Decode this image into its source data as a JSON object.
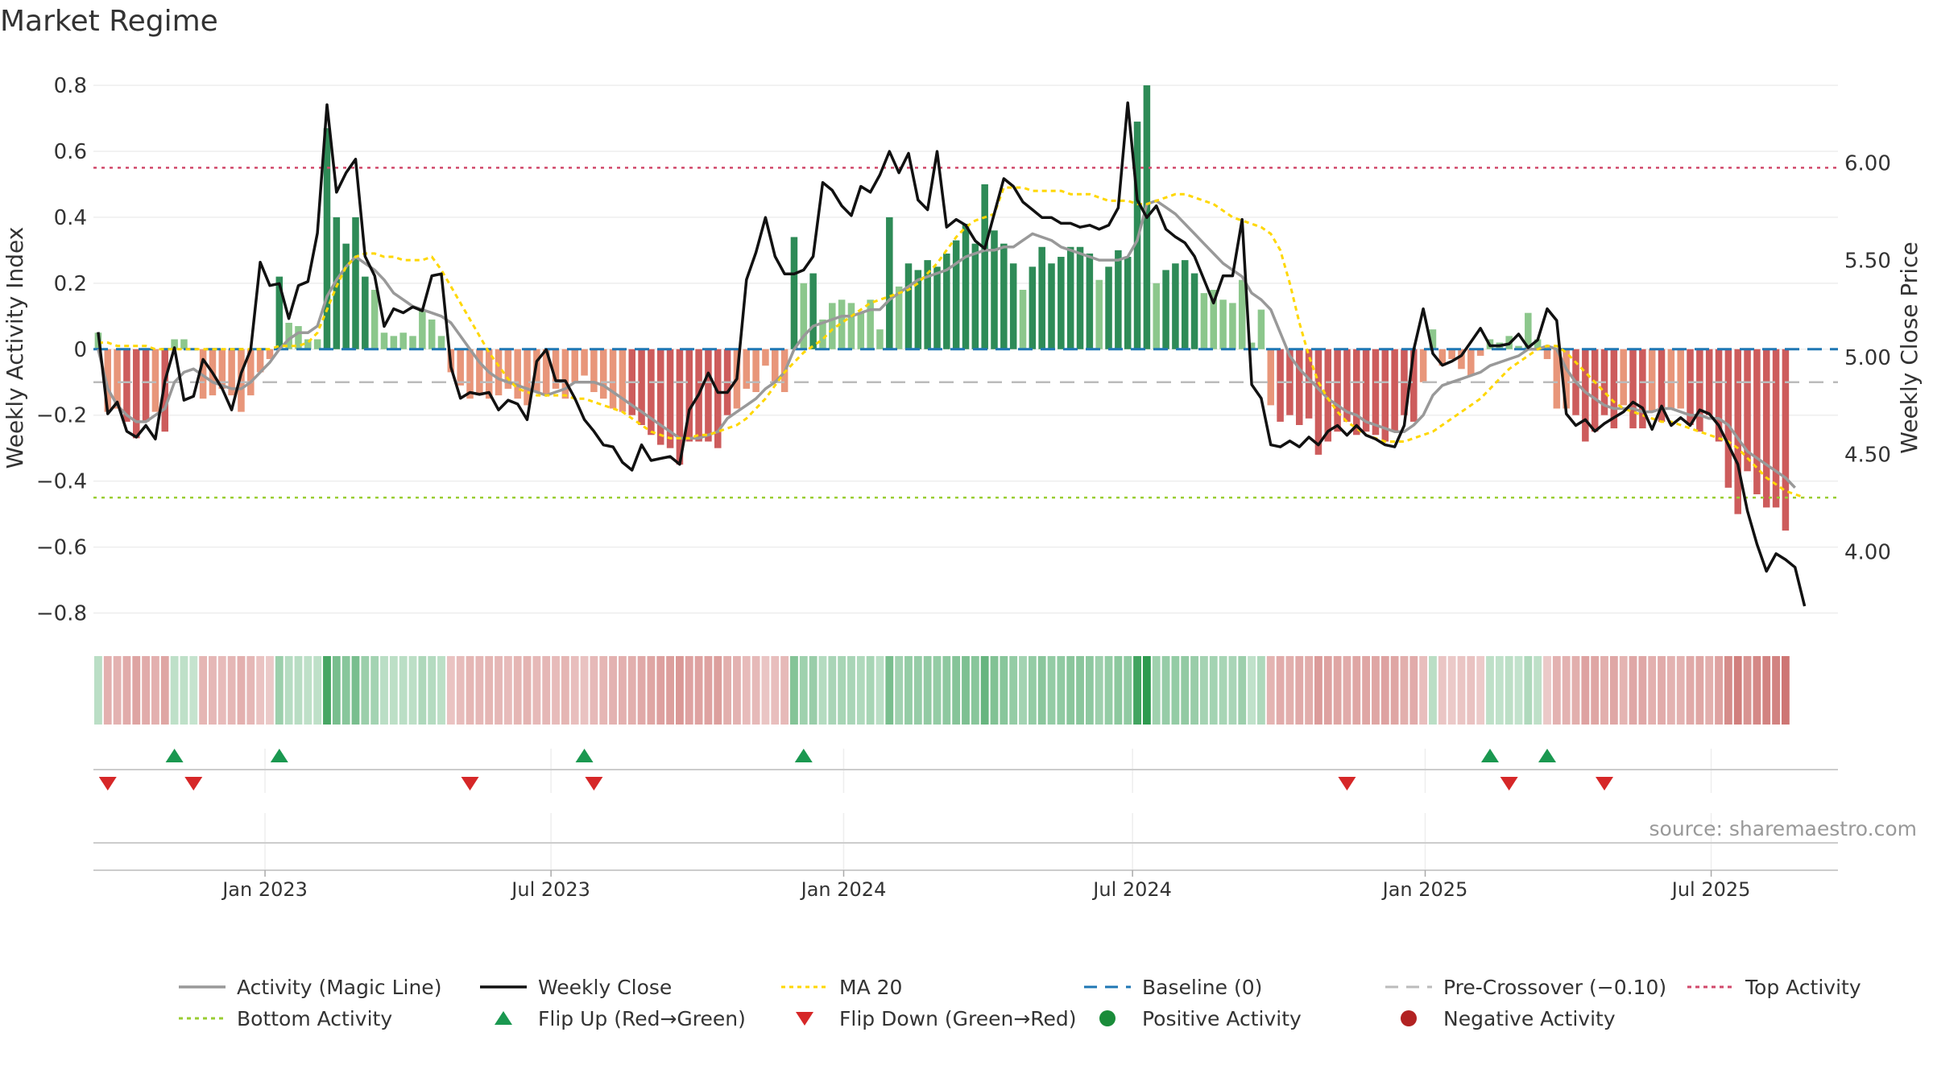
{
  "chart_data": {
    "type": "bar",
    "title": "Market Regime",
    "ylabel_left": "Weekly Activity Index",
    "ylabel_right": "Weekly Close Price",
    "source": "source: sharemaestro.com",
    "left_axis": {
      "ylim": [
        -0.85,
        0.8
      ],
      "ticks": [
        0.8,
        0.6,
        0.4,
        0.2,
        0,
        -0.2,
        -0.4,
        -0.6,
        -0.8
      ],
      "tick_labels": [
        "0.8",
        "0.6",
        "0.4",
        "0.2",
        "0",
        "−0.2",
        "−0.4",
        "−0.6",
        "−0.8"
      ]
    },
    "right_axis": {
      "ylim": [
        3.6,
        6.4
      ],
      "ticks": [
        6.0,
        5.5,
        5.0,
        4.5,
        4.0
      ],
      "tick_labels": [
        "6.00",
        "5.50",
        "5.00",
        "4.50",
        "4.00"
      ]
    },
    "x_axis": {
      "week_count": 183,
      "ticks": [
        {
          "label": "Jan 2023",
          "week": 17.5
        },
        {
          "label": "Jul 2023",
          "week": 47.5
        },
        {
          "label": "Jan 2024",
          "week": 78.2
        },
        {
          "label": "Jul 2024",
          "week": 108.5
        },
        {
          "label": "Jan 2025",
          "week": 139.2
        },
        {
          "label": "Jul 2025",
          "week": 169.2
        }
      ]
    },
    "reference_lines": {
      "top_activity": 0.55,
      "bottom_activity": -0.45,
      "pre_crossover": -0.1,
      "baseline": 0
    },
    "colors": {
      "pos_strong": "#2e8b57",
      "pos_light": "#8cc78c",
      "neg_strong": "#cd5c5c",
      "neg_light": "#e8967a",
      "close": "#111111",
      "magic": "#999999",
      "ma20": "#ffd700",
      "baseline": "#1f77b4",
      "pre": "#bbbbbb",
      "top": "#d1496b",
      "bottom": "#9acd32",
      "flip_up": "#1a9850",
      "flip_down": "#d62728",
      "pos_dot": "#1a8c3a",
      "neg_dot": "#b22222"
    },
    "activity": [
      0.05,
      -0.19,
      -0.18,
      -0.22,
      -0.27,
      -0.22,
      -0.19,
      -0.25,
      0.03,
      0.03,
      0.0,
      -0.15,
      -0.14,
      -0.12,
      -0.14,
      -0.19,
      -0.14,
      -0.07,
      -0.03,
      0.22,
      0.08,
      0.07,
      0.03,
      0.03,
      0.67,
      0.4,
      0.32,
      0.4,
      0.22,
      0.18,
      0.05,
      0.04,
      0.05,
      0.04,
      0.12,
      0.09,
      0.04,
      -0.07,
      -0.11,
      -0.15,
      -0.14,
      -0.15,
      -0.14,
      -0.12,
      -0.15,
      -0.17,
      -0.13,
      -0.14,
      -0.12,
      -0.15,
      -0.1,
      -0.08,
      -0.13,
      -0.15,
      -0.18,
      -0.19,
      -0.2,
      -0.23,
      -0.26,
      -0.29,
      -0.3,
      -0.35,
      -0.28,
      -0.28,
      -0.28,
      -0.3,
      -0.2,
      -0.18,
      -0.12,
      -0.13,
      -0.05,
      -0.1,
      -0.13,
      0.34,
      0.2,
      0.23,
      0.09,
      0.14,
      0.15,
      0.14,
      0.11,
      0.15,
      0.06,
      0.4,
      0.19,
      0.26,
      0.24,
      0.27,
      0.25,
      0.29,
      0.33,
      0.38,
      0.32,
      0.5,
      0.36,
      0.32,
      0.26,
      0.18,
      0.25,
      0.31,
      0.26,
      0.28,
      0.31,
      0.31,
      0.29,
      0.21,
      0.25,
      0.3,
      0.28,
      0.69,
      0.8,
      0.2,
      0.24,
      0.26,
      0.27,
      0.23,
      0.17,
      0.18,
      0.15,
      0.14,
      0.21,
      0.02,
      0.12,
      -0.17,
      -0.22,
      -0.2,
      -0.23,
      -0.21,
      -0.32,
      -0.28,
      -0.25,
      -0.22,
      -0.26,
      -0.25,
      -0.26,
      -0.28,
      -0.25,
      -0.2,
      -0.22,
      -0.1,
      0.06,
      -0.05,
      -0.03,
      -0.06,
      -0.08,
      -0.02,
      0.03,
      0.02,
      0.04,
      0.01,
      0.11,
      0.03,
      -0.03,
      -0.18,
      -0.18,
      -0.2,
      -0.28,
      -0.25,
      -0.2,
      -0.24,
      -0.17,
      -0.24,
      -0.24,
      -0.19,
      -0.22,
      -0.18,
      -0.18,
      -0.23,
      -0.25,
      -0.2,
      -0.28,
      -0.42,
      -0.5,
      -0.37,
      -0.44,
      -0.48,
      -0.48,
      -0.55
    ],
    "close": [
      5.13,
      4.71,
      4.77,
      4.62,
      4.59,
      4.65,
      4.58,
      4.88,
      5.05,
      4.78,
      4.8,
      4.99,
      4.92,
      4.84,
      4.73,
      4.92,
      5.04,
      5.49,
      5.37,
      5.38,
      5.2,
      5.37,
      5.39,
      5.64,
      6.3,
      5.85,
      5.95,
      6.02,
      5.52,
      5.42,
      5.16,
      5.25,
      5.23,
      5.26,
      5.24,
      5.42,
      5.43,
      4.95,
      4.79,
      4.82,
      4.81,
      4.82,
      4.73,
      4.78,
      4.76,
      4.68,
      4.98,
      5.04,
      4.88,
      4.88,
      4.79,
      4.68,
      4.62,
      4.55,
      4.54,
      4.46,
      4.42,
      4.55,
      4.47,
      4.48,
      4.49,
      4.45,
      4.73,
      4.81,
      4.92,
      4.82,
      4.82,
      4.89,
      5.4,
      5.54,
      5.72,
      5.52,
      5.43,
      5.43,
      5.45,
      5.52,
      5.9,
      5.86,
      5.78,
      5.73,
      5.88,
      5.85,
      5.94,
      6.06,
      5.95,
      6.05,
      5.81,
      5.76,
      6.06,
      5.67,
      5.71,
      5.68,
      5.6,
      5.56,
      5.74,
      5.92,
      5.88,
      5.8,
      5.76,
      5.72,
      5.72,
      5.69,
      5.69,
      5.67,
      5.68,
      5.66,
      5.68,
      5.77,
      6.31,
      5.81,
      5.72,
      5.78,
      5.66,
      5.62,
      5.59,
      5.52,
      5.4,
      5.28,
      5.42,
      5.42,
      5.71,
      4.86,
      4.79,
      4.55,
      4.54,
      4.57,
      4.54,
      4.59,
      4.55,
      4.62,
      4.65,
      4.6,
      4.65,
      4.6,
      4.58,
      4.55,
      4.54,
      4.65,
      5.04,
      5.25,
      5.02,
      4.96,
      4.98,
      5.01,
      5.08,
      5.15,
      5.06,
      5.06,
      5.07,
      5.12,
      5.05,
      5.09,
      5.25,
      5.19,
      4.71,
      4.65,
      4.68,
      4.62,
      4.66,
      4.69,
      4.72,
      4.77,
      4.74,
      4.63,
      4.75,
      4.65,
      4.69,
      4.65,
      4.73,
      4.71,
      4.65,
      4.55,
      4.45,
      4.21,
      4.04,
      3.9,
      3.99,
      3.96,
      3.92,
      3.72
    ],
    "magic_line": [
      0.0,
      -0.12,
      -0.17,
      -0.2,
      -0.22,
      -0.22,
      -0.2,
      -0.18,
      -0.1,
      -0.07,
      -0.06,
      -0.08,
      -0.1,
      -0.11,
      -0.12,
      -0.12,
      -0.1,
      -0.07,
      -0.04,
      0.0,
      0.03,
      0.05,
      0.05,
      0.07,
      0.16,
      0.21,
      0.25,
      0.28,
      0.26,
      0.24,
      0.21,
      0.17,
      0.15,
      0.13,
      0.12,
      0.11,
      0.1,
      0.08,
      0.04,
      0.0,
      -0.04,
      -0.07,
      -0.09,
      -0.1,
      -0.11,
      -0.12,
      -0.13,
      -0.14,
      -0.13,
      -0.12,
      -0.1,
      -0.1,
      -0.1,
      -0.11,
      -0.13,
      -0.15,
      -0.17,
      -0.19,
      -0.21,
      -0.23,
      -0.25,
      -0.27,
      -0.27,
      -0.27,
      -0.26,
      -0.25,
      -0.21,
      -0.19,
      -0.17,
      -0.15,
      -0.12,
      -0.1,
      -0.07,
      0.0,
      0.04,
      0.07,
      0.08,
      0.09,
      0.1,
      0.1,
      0.11,
      0.12,
      0.12,
      0.15,
      0.17,
      0.19,
      0.21,
      0.22,
      0.23,
      0.24,
      0.26,
      0.28,
      0.29,
      0.3,
      0.3,
      0.31,
      0.31,
      0.33,
      0.35,
      0.34,
      0.33,
      0.31,
      0.3,
      0.29,
      0.28,
      0.27,
      0.27,
      0.27,
      0.28,
      0.33,
      0.44,
      0.45,
      0.43,
      0.41,
      0.38,
      0.35,
      0.32,
      0.29,
      0.26,
      0.24,
      0.22,
      0.17,
      0.15,
      0.12,
      0.05,
      -0.02,
      -0.06,
      -0.09,
      -0.12,
      -0.15,
      -0.17,
      -0.19,
      -0.2,
      -0.22,
      -0.23,
      -0.24,
      -0.25,
      -0.25,
      -0.23,
      -0.2,
      -0.14,
      -0.11,
      -0.1,
      -0.09,
      -0.08,
      -0.07,
      -0.05,
      -0.04,
      -0.03,
      -0.02,
      0.0,
      0.0,
      0.01,
      0.0,
      -0.06,
      -0.1,
      -0.13,
      -0.15,
      -0.17,
      -0.18,
      -0.18,
      -0.18,
      -0.19,
      -0.19,
      -0.18,
      -0.18,
      -0.19,
      -0.2,
      -0.2,
      -0.21,
      -0.21,
      -0.23,
      -0.27,
      -0.31,
      -0.33,
      -0.35,
      -0.37,
      -0.39,
      -0.42
    ],
    "ma20": [
      0.02,
      0.02,
      0.01,
      0.01,
      0.01,
      0.01,
      0.0,
      0.0,
      0.0,
      0.0,
      0.0,
      0.0,
      0.0,
      0.0,
      0.0,
      0.0,
      0.0,
      0.0,
      0.0,
      0.01,
      0.01,
      0.01,
      0.02,
      0.05,
      0.12,
      0.19,
      0.25,
      0.28,
      0.29,
      0.29,
      0.28,
      0.28,
      0.27,
      0.27,
      0.27,
      0.28,
      0.24,
      0.19,
      0.14,
      0.09,
      0.04,
      -0.01,
      -0.05,
      -0.09,
      -0.12,
      -0.13,
      -0.14,
      -0.14,
      -0.14,
      -0.14,
      -0.15,
      -0.15,
      -0.16,
      -0.17,
      -0.18,
      -0.19,
      -0.21,
      -0.23,
      -0.25,
      -0.26,
      -0.27,
      -0.27,
      -0.27,
      -0.26,
      -0.26,
      -0.25,
      -0.24,
      -0.23,
      -0.21,
      -0.18,
      -0.15,
      -0.11,
      -0.07,
      -0.04,
      -0.01,
      0.01,
      0.03,
      0.06,
      0.08,
      0.1,
      0.12,
      0.14,
      0.15,
      0.16,
      0.17,
      0.18,
      0.2,
      0.23,
      0.26,
      0.3,
      0.34,
      0.37,
      0.39,
      0.4,
      0.41,
      0.49,
      0.49,
      0.49,
      0.48,
      0.48,
      0.48,
      0.48,
      0.47,
      0.47,
      0.47,
      0.46,
      0.45,
      0.45,
      0.45,
      0.44,
      0.44,
      0.45,
      0.46,
      0.47,
      0.47,
      0.46,
      0.45,
      0.44,
      0.42,
      0.4,
      0.39,
      0.38,
      0.37,
      0.35,
      0.3,
      0.2,
      0.08,
      -0.02,
      -0.1,
      -0.15,
      -0.19,
      -0.22,
      -0.24,
      -0.26,
      -0.27,
      -0.28,
      -0.28,
      -0.28,
      -0.27,
      -0.26,
      -0.25,
      -0.23,
      -0.21,
      -0.19,
      -0.17,
      -0.15,
      -0.12,
      -0.09,
      -0.06,
      -0.04,
      -0.02,
      0.0,
      0.01,
      0.01,
      -0.01,
      -0.04,
      -0.07,
      -0.1,
      -0.13,
      -0.16,
      -0.18,
      -0.19,
      -0.2,
      -0.21,
      -0.22,
      -0.22,
      -0.23,
      -0.24,
      -0.25,
      -0.26,
      -0.27,
      -0.28,
      -0.3,
      -0.33,
      -0.36,
      -0.39,
      -0.41,
      -0.43,
      -0.44,
      -0.45
    ],
    "regime_strip_note": "colored cell per week mirroring activity sign and magnitude",
    "flip_up_weeks": [
      8,
      19,
      51,
      74,
      146,
      152
    ],
    "flip_down_weeks": [
      1,
      10,
      39,
      52,
      131,
      148,
      158
    ],
    "legend": [
      {
        "key": "magic",
        "label": "Activity (Magic Line)"
      },
      {
        "key": "close",
        "label": "Weekly Close"
      },
      {
        "key": "ma20",
        "label": "MA 20"
      },
      {
        "key": "baseline",
        "label": "Baseline (0)"
      },
      {
        "key": "pre",
        "label": "Pre-Crossover (−0.10)"
      },
      {
        "key": "top",
        "label": "Top Activity"
      },
      {
        "key": "bottom",
        "label": "Bottom Activity"
      },
      {
        "key": "flip_up",
        "label": "Flip Up (Red→Green)"
      },
      {
        "key": "flip_down",
        "label": "Flip Down (Green→Red)"
      },
      {
        "key": "pos_dot",
        "label": "Positive Activity"
      },
      {
        "key": "neg_dot",
        "label": "Negative Activity"
      }
    ]
  }
}
